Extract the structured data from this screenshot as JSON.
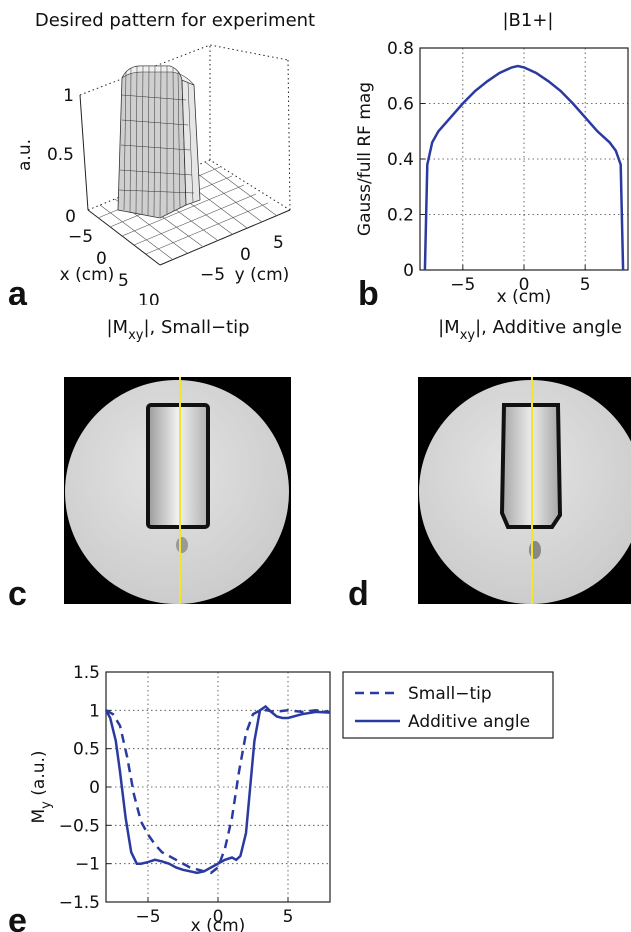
{
  "figure": {
    "panels": {
      "a": {
        "letter": "a",
        "title": "Desired pattern for experiment",
        "xlabel": "x (cm)",
        "ylabel": "y (cm)",
        "zlabel": "a.u.",
        "x_ticks": [
          "−5",
          "0",
          "5",
          "10"
        ],
        "y_ticks": [
          "5",
          "0",
          "−5"
        ],
        "z_ticks": [
          "0",
          "0.5",
          "1"
        ]
      },
      "b": {
        "letter": "b",
        "title": "|B1+|",
        "xlabel": "x (cm)",
        "ylabel": "Gauss/full RF mag",
        "x_ticks": [
          "−5",
          "0",
          "5"
        ],
        "y_ticks": [
          "0",
          "0.2",
          "0.4",
          "0.6",
          "0.8"
        ]
      },
      "c": {
        "letter": "c",
        "title_prefix": "|M",
        "title_sub": "xy",
        "title_suffix": "|, Small−tip"
      },
      "d": {
        "letter": "d",
        "title_prefix": "|M",
        "title_sub": "xy",
        "title_suffix": "|, Additive angle"
      },
      "e": {
        "letter": "e",
        "xlabel": "x (cm)",
        "ylabel_main": "M",
        "ylabel_sub": "y",
        "ylabel_unit": " (a.u.)",
        "x_ticks": [
          "−5",
          "0",
          "5"
        ],
        "y_ticks": [
          "−1.5",
          "−1",
          "−0.5",
          "0",
          "0.5",
          "1",
          "1.5"
        ],
        "legend": [
          "Small−tip",
          "Additive angle"
        ]
      }
    },
    "colors": {
      "line": "#2b3aa0",
      "marker": "#f2e52a"
    }
  },
  "chart_data": [
    {
      "type": "surface",
      "title": "Desired pattern for experiment",
      "xlabel": "x (cm)",
      "ylabel": "y (cm)",
      "zlabel": "a.u.",
      "xlim": [
        -5,
        10
      ],
      "ylim": [
        -5,
        5
      ],
      "zlim": [
        0,
        1
      ]
    },
    {
      "type": "line",
      "title": "|B1+|",
      "xlabel": "x (cm)",
      "ylabel": "Gauss/full RF mag",
      "xlim": [
        -8.5,
        8.5
      ],
      "ylim": [
        0,
        0.8
      ],
      "grid": true,
      "series": [
        {
          "x": [
            -8.1,
            -7.9,
            -7.5,
            -7,
            -6,
            -5,
            -4,
            -3,
            -2,
            -1,
            -0.5,
            0,
            1,
            2,
            3,
            4,
            5,
            6,
            7,
            7.5,
            7.9,
            8.1
          ],
          "values": [
            0,
            0.38,
            0.46,
            0.5,
            0.55,
            0.6,
            0.645,
            0.68,
            0.71,
            0.73,
            0.735,
            0.73,
            0.71,
            0.68,
            0.645,
            0.6,
            0.55,
            0.5,
            0.46,
            0.43,
            0.38,
            0
          ]
        }
      ]
    },
    {
      "type": "line",
      "xlabel": "x (cm)",
      "ylabel": "M_y (a.u.)",
      "xlim": [
        -8,
        8
      ],
      "ylim": [
        -1.5,
        1.5
      ],
      "grid": true,
      "legend": "right-top",
      "series": [
        {
          "name": "Small−tip",
          "style": "dashed",
          "x": [
            -8,
            -7.5,
            -7,
            -6.5,
            -6,
            -5.5,
            -5,
            -4.5,
            -4,
            -3,
            -2,
            -1,
            -0.5,
            0,
            0.5,
            1,
            1.5,
            2,
            2.5,
            3,
            3.5,
            4,
            5,
            6,
            7,
            8
          ],
          "values": [
            1,
            0.95,
            0.8,
            0.4,
            -0.1,
            -0.45,
            -0.62,
            -0.75,
            -0.85,
            -0.95,
            -1.05,
            -1.1,
            -1.12,
            -1.05,
            -0.8,
            -0.4,
            0.2,
            0.7,
            0.95,
            1,
            1,
            0.98,
            1,
            0.98,
            1,
            0.98
          ]
        },
        {
          "name": "Additive angle",
          "style": "solid",
          "x": [
            -8,
            -7.7,
            -7.3,
            -7,
            -6.6,
            -6.2,
            -5.8,
            -5.5,
            -5,
            -4.5,
            -4,
            -3.5,
            -3,
            -2.5,
            -2,
            -1.5,
            -1,
            -0.5,
            0,
            0.5,
            1,
            1.3,
            1.6,
            2,
            2.3,
            2.6,
            3,
            3.4,
            3.8,
            4.2,
            4.6,
            5,
            6,
            7,
            8
          ],
          "values": [
            1,
            0.9,
            0.6,
            0.2,
            -0.4,
            -0.85,
            -1,
            -1,
            -0.98,
            -0.95,
            -0.97,
            -1.0,
            -1.05,
            -1.08,
            -1.1,
            -1.12,
            -1.1,
            -1.05,
            -1.0,
            -0.95,
            -0.92,
            -0.95,
            -0.9,
            -0.6,
            0,
            0.6,
            1.0,
            1.05,
            0.98,
            0.92,
            0.9,
            0.9,
            0.95,
            0.98,
            0.97
          ]
        }
      ]
    }
  ]
}
